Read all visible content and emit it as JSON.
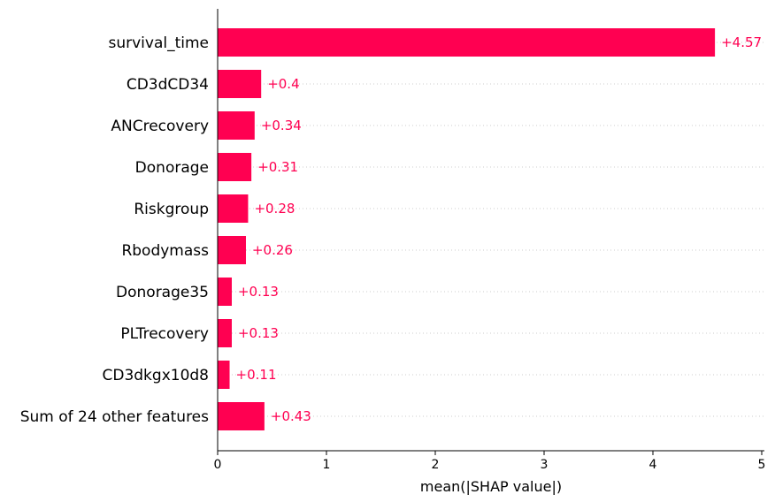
{
  "chart_data": {
    "type": "bar",
    "orientation": "horizontal",
    "categories": [
      "survival_time",
      "CD3dCD34",
      "ANCrecovery",
      "Donorage",
      "Riskgroup",
      "Rbodymass",
      "Donorage35",
      "PLTrecovery",
      "CD3dkgx10d8",
      "Sum of 24 other features"
    ],
    "values": [
      4.57,
      0.4,
      0.34,
      0.31,
      0.28,
      0.26,
      0.13,
      0.13,
      0.11,
      0.43
    ],
    "value_labels": [
      "+4.57",
      "+0.4",
      "+0.34",
      "+0.31",
      "+0.28",
      "+0.26",
      "+0.13",
      "+0.13",
      "+0.11",
      "+0.43"
    ],
    "title": "",
    "xlabel": "mean(|SHAP value|)",
    "ylabel": "",
    "xlim": [
      0,
      5
    ],
    "xticks": [
      0,
      1,
      2,
      3,
      4,
      5
    ],
    "xtick_labels": [
      "0",
      "1",
      "2",
      "3",
      "4",
      "5"
    ],
    "grid": "dotted horizontal row lines",
    "legend": "none",
    "bar_color": "#ff0051",
    "label_color": "#ff0051"
  }
}
